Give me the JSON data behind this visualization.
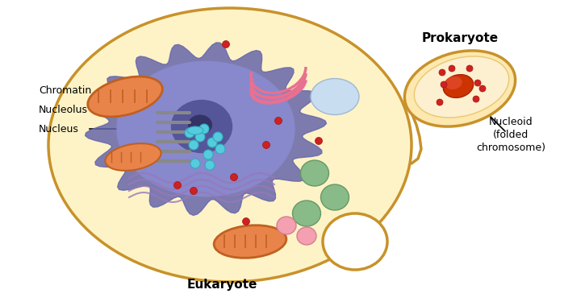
{
  "title_eukaryote": "Eukaryote",
  "title_prokaryote": "Prokaryote",
  "label_nucleus": "Nucleus",
  "label_nucleolus": "Nucleolus",
  "label_chromatin": "Chromatin",
  "label_nucleoid": "Nucleoid\n(folded\nchromosome)",
  "bg_color": "#ffffff",
  "cell_fill": "#fef3c7",
  "cell_border": "#c8922a",
  "nucleus_outer_fill": "#a0a8d8",
  "nucleus_inner_fill": "#8888cc",
  "nucleolus_fill": "#555599",
  "chromatin_color": "#6666aa",
  "mitochondria_fill": "#e8844a",
  "mitochondria_border": "#c06020",
  "pink_blobs": "#f4a0b0",
  "green_blobs": "#88bb88",
  "red_dots": "#cc2222",
  "cyan_dots": "#44cccc",
  "prokaryote_fill": "#fde8b0",
  "prokaryote_border": "#c8922a",
  "nucleoid_color": "#cc3300"
}
